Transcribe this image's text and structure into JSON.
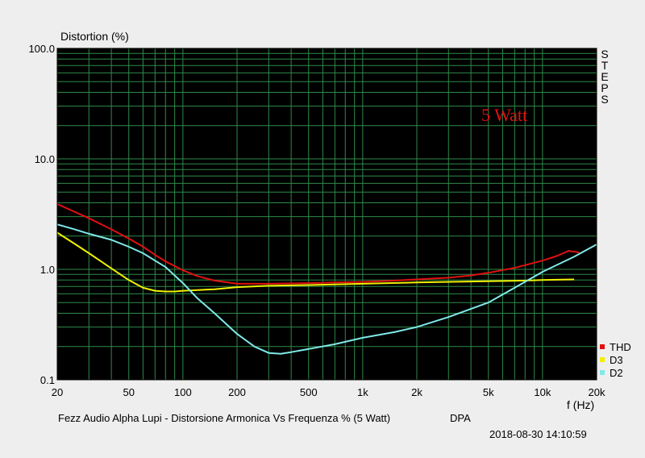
{
  "chart_data": {
    "type": "line",
    "title": "Fezz Audio Alpha Lupi - Distorsione Armonica Vs Frequenza % (5 Watt)",
    "title_suffix": "DPA",
    "timestamp": "2018-08-30 14:10:59",
    "side_label": "STEPS",
    "annotation": "5 Watt",
    "ylabel": "Distortion (%)",
    "xlabel": "f (Hz)",
    "xscale": "log",
    "yscale": "log",
    "xlim": [
      20,
      20000
    ],
    "ylim": [
      0.1,
      100
    ],
    "grid": true,
    "background": "#000000",
    "grid_color": "#2f8a4a",
    "legend_position": "bottom-right outside",
    "x_ticks": [
      {
        "value": 20,
        "label": "20"
      },
      {
        "value": 50,
        "label": "50"
      },
      {
        "value": 100,
        "label": "100"
      },
      {
        "value": 200,
        "label": "200"
      },
      {
        "value": 500,
        "label": "500"
      },
      {
        "value": 1000,
        "label": "1k"
      },
      {
        "value": 2000,
        "label": "2k"
      },
      {
        "value": 5000,
        "label": "5k"
      },
      {
        "value": 10000,
        "label": "10k"
      },
      {
        "value": 20000,
        "label": "20k"
      }
    ],
    "y_ticks": [
      {
        "value": 0.1,
        "label": "0.1"
      },
      {
        "value": 1,
        "label": "1.0"
      },
      {
        "value": 10,
        "label": "10.0"
      },
      {
        "value": 100,
        "label": "100.0"
      }
    ],
    "series": [
      {
        "name": "THD",
        "color": "#e01010",
        "x": [
          20,
          30,
          40,
          50,
          60,
          70,
          80,
          100,
          120,
          150,
          200,
          300,
          500,
          700,
          1000,
          1500,
          2000,
          3000,
          4000,
          5000,
          7000,
          10000,
          12000,
          14000,
          16000
        ],
        "y": [
          3.9,
          2.9,
          2.3,
          1.9,
          1.6,
          1.35,
          1.18,
          0.98,
          0.87,
          0.79,
          0.74,
          0.74,
          0.75,
          0.76,
          0.77,
          0.79,
          0.81,
          0.84,
          0.88,
          0.93,
          1.03,
          1.2,
          1.32,
          1.47,
          1.42
        ]
      },
      {
        "name": "D3",
        "color": "#f0f000",
        "x": [
          20,
          25,
          30,
          40,
          50,
          60,
          70,
          80,
          90,
          100,
          150,
          200,
          300,
          500,
          1000,
          2000,
          5000,
          8000,
          10000,
          15000
        ],
        "y": [
          2.15,
          1.7,
          1.4,
          1.02,
          0.8,
          0.68,
          0.64,
          0.63,
          0.63,
          0.64,
          0.66,
          0.69,
          0.71,
          0.72,
          0.74,
          0.76,
          0.78,
          0.79,
          0.8,
          0.81
        ]
      },
      {
        "name": "D2",
        "color": "#80e8e8",
        "x": [
          20,
          25,
          30,
          40,
          50,
          60,
          70,
          80,
          100,
          120,
          150,
          200,
          250,
          300,
          350,
          400,
          500,
          700,
          1000,
          1500,
          2000,
          3000,
          5000,
          7000,
          10000,
          15000,
          20000
        ],
        "y": [
          2.55,
          2.3,
          2.1,
          1.85,
          1.6,
          1.4,
          1.2,
          1.05,
          0.75,
          0.55,
          0.4,
          0.26,
          0.2,
          0.175,
          0.172,
          0.178,
          0.19,
          0.21,
          0.24,
          0.27,
          0.3,
          0.37,
          0.5,
          0.68,
          0.95,
          1.3,
          1.68
        ]
      }
    ]
  }
}
